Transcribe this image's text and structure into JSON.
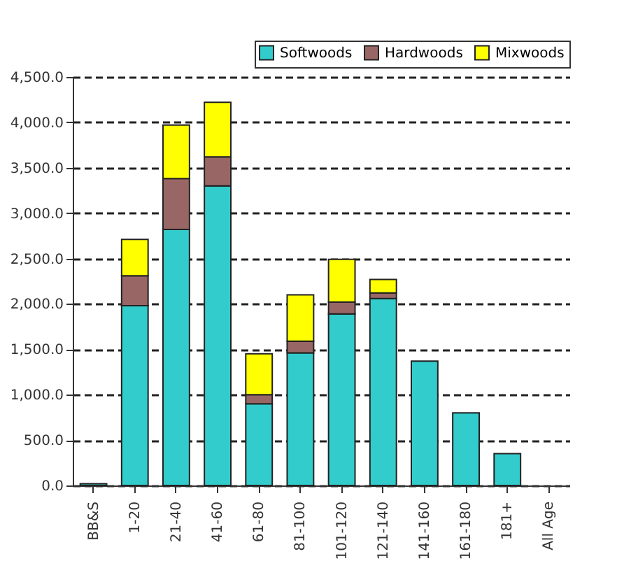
{
  "chart_data": {
    "type": "bar",
    "stacked": true,
    "categories": [
      "BB&S",
      "1-20",
      "21-40",
      "41-60",
      "61-80",
      "81-100",
      "101-120",
      "121-140",
      "141-160",
      "161-180",
      "181+",
      "All Age"
    ],
    "series": [
      {
        "name": "Softwoods",
        "color": "#33cccc",
        "values": [
          20,
          1980,
          2820,
          3300,
          900,
          1460,
          1890,
          2060,
          1370,
          800,
          350,
          null
        ]
      },
      {
        "name": "Hardwoods",
        "color": "#996666",
        "values": [
          null,
          330,
          560,
          320,
          100,
          130,
          130,
          60,
          null,
          null,
          null,
          null
        ]
      },
      {
        "name": "Mixwoods",
        "color": "#ffff00",
        "values": [
          null,
          400,
          590,
          600,
          450,
          510,
          470,
          150,
          null,
          null,
          null,
          null
        ]
      }
    ],
    "ylim": [
      0,
      4500
    ],
    "yticks": [
      {
        "value": 0,
        "label": "0.0"
      },
      {
        "value": 500,
        "label": "500.0"
      },
      {
        "value": 1000,
        "label": "1,000.0"
      },
      {
        "value": 1500,
        "label": "1,500.0"
      },
      {
        "value": 2000,
        "label": "2,000.0"
      },
      {
        "value": 2500,
        "label": "2,500.0"
      },
      {
        "value": 3000,
        "label": "3,000.0"
      },
      {
        "value": 3500,
        "label": "3,500.0"
      },
      {
        "value": 4000,
        "label": "4,000.0"
      },
      {
        "value": 4500,
        "label": "4,500.0"
      }
    ],
    "grid": "y",
    "legend": "top right"
  }
}
